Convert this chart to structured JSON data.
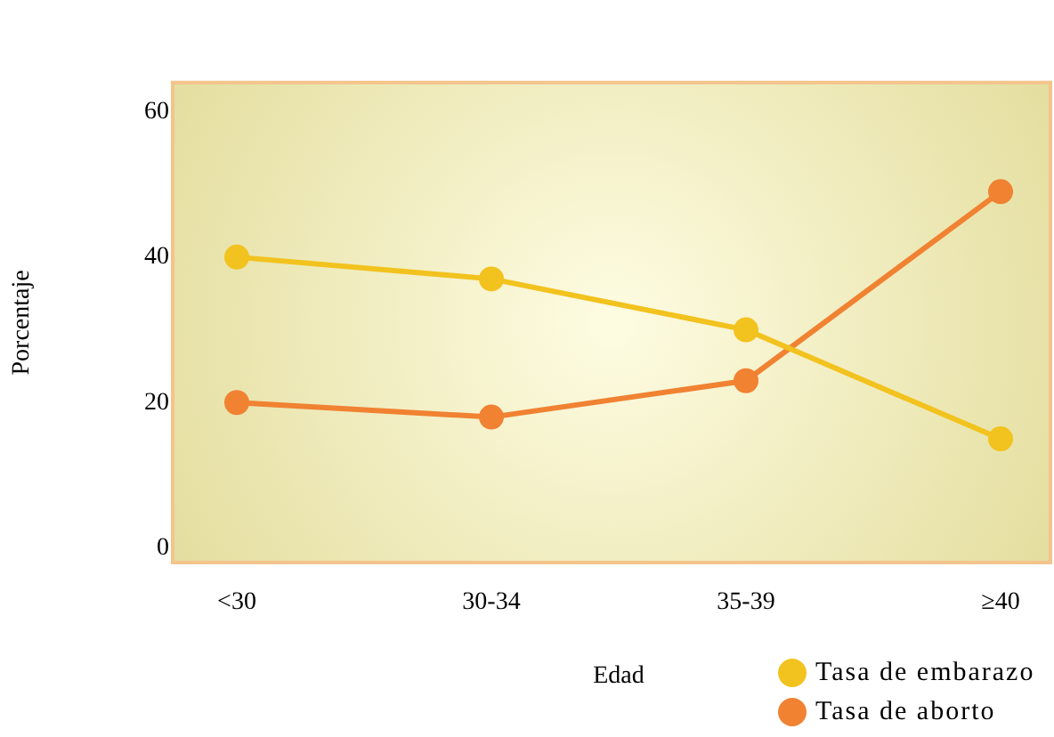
{
  "chart_data": {
    "type": "line",
    "xlabel": "Edad",
    "ylabel": "Porcentaje",
    "categories": [
      "<30",
      "30-34",
      "35-39",
      "≥40"
    ],
    "series": [
      {
        "name": "Tasa de embarazo",
        "color": "#f2c21e",
        "values": [
          40,
          37,
          30,
          15
        ]
      },
      {
        "name": "Tasa de aborto",
        "color": "#f08232",
        "values": [
          20,
          18,
          23,
          49
        ]
      }
    ],
    "ylim": [
      -2,
      64
    ],
    "yticks": [
      0,
      20,
      40,
      60
    ],
    "grid": false,
    "legend": "bottom right",
    "marker": "circle",
    "line_style": "solid"
  }
}
